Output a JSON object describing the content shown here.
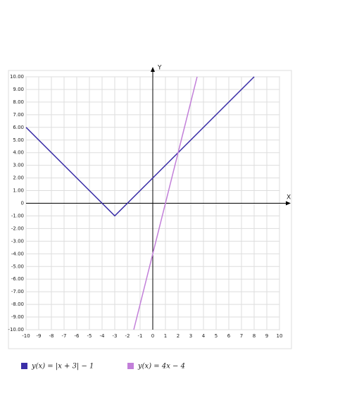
{
  "chart_data": {
    "type": "line",
    "x_label": "X",
    "y_label": "Y",
    "xlim": [
      -10,
      10
    ],
    "ylim": [
      -10,
      10
    ],
    "xticks": [
      -10,
      -9,
      -8,
      -7,
      -6,
      -5,
      -4,
      -3,
      -2,
      -1,
      0,
      1,
      2,
      3,
      4,
      5,
      6,
      7,
      8,
      9,
      10
    ],
    "yticks": [
      {
        "value": 10,
        "label": "10.00"
      },
      {
        "value": 9,
        "label": "9.00"
      },
      {
        "value": 8,
        "label": "8.00"
      },
      {
        "value": 7,
        "label": "7.00"
      },
      {
        "value": 6,
        "label": "6.00"
      },
      {
        "value": 5,
        "label": "5.00"
      },
      {
        "value": 4,
        "label": "4.00"
      },
      {
        "value": 3,
        "label": "3.00"
      },
      {
        "value": 2,
        "label": "2.00"
      },
      {
        "value": 1,
        "label": "1.00"
      },
      0,
      {
        "value": -1,
        "label": "-1.00"
      },
      {
        "value": -2,
        "label": "-2.00"
      },
      {
        "value": -3,
        "label": "-3.00"
      },
      {
        "value": -4,
        "label": "-4.00"
      },
      {
        "value": -5,
        "label": "-5.00"
      },
      {
        "value": -6,
        "label": "-6.00"
      },
      {
        "value": -7,
        "label": "-7.00"
      },
      {
        "value": -8,
        "label": "-8.00"
      },
      {
        "value": -9,
        "label": "-9.00"
      },
      {
        "value": -10,
        "label": "-10.00"
      }
    ],
    "grid": true,
    "series": [
      {
        "name": "y(x) = |x + 3| − 1",
        "color": "#3b2fa8",
        "x": [
          -10,
          -3,
          8
        ],
        "values": [
          6,
          -1,
          10
        ]
      },
      {
        "name": "y(x) = 4x − 4",
        "color": "#c27fd9",
        "x": [
          -1.5,
          3.5
        ],
        "values": [
          -10,
          10
        ]
      }
    ]
  }
}
